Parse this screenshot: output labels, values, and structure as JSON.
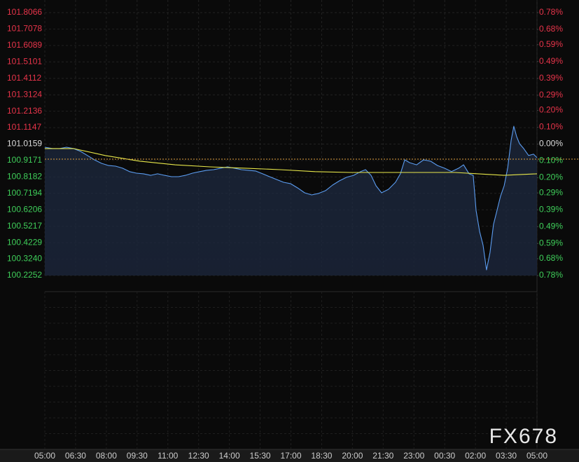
{
  "chart_data": {
    "type": "line",
    "watermark": "FX678",
    "xlim": [
      0,
      24
    ],
    "xticks": [
      {
        "value": 0,
        "label": "05:00"
      },
      {
        "value": 1.5,
        "label": "06:30"
      },
      {
        "value": 3,
        "label": "08:00"
      },
      {
        "value": 4.5,
        "label": "09:30"
      },
      {
        "value": 6,
        "label": "11:00"
      },
      {
        "value": 7.5,
        "label": "12:30"
      },
      {
        "value": 9,
        "label": "14:00"
      },
      {
        "value": 10.5,
        "label": "15:30"
      },
      {
        "value": 12,
        "label": "17:00"
      },
      {
        "value": 13.5,
        "label": "18:30"
      },
      {
        "value": 15,
        "label": "20:00"
      },
      {
        "value": 16.5,
        "label": "21:30"
      },
      {
        "value": 18,
        "label": "23:00"
      },
      {
        "value": 19.5,
        "label": "00:30"
      },
      {
        "value": 21,
        "label": "02:00"
      },
      {
        "value": 22.5,
        "label": "03:30"
      },
      {
        "value": 24,
        "label": "05:00"
      }
    ],
    "ylim": [
      100.2252,
      101.8066
    ],
    "yticks": [
      101.8066,
      101.7078,
      101.6089,
      101.5101,
      101.4112,
      101.3124,
      101.2136,
      101.1147,
      101.0159,
      100.9171,
      100.8182,
      100.7194,
      100.6206,
      100.5217,
      100.4229,
      {
        "value": 100.324,
        "label": "100.3240"
      },
      100.2252
    ],
    "y2lim": [
      -0.78,
      0.78
    ],
    "y2ticks": [
      {
        "value": 0.78,
        "label": "0.78%"
      },
      {
        "value": 0.68,
        "label": "0.68%"
      },
      {
        "value": 0.59,
        "label": "0.59%"
      },
      {
        "value": 0.49,
        "label": "0.49%"
      },
      {
        "value": 0.39,
        "label": "0.39%"
      },
      {
        "value": 0.29,
        "label": "0.29%"
      },
      {
        "value": 0.2,
        "label": "0.20%"
      },
      {
        "value": 0.1,
        "label": "0.10%"
      },
      {
        "value": 0,
        "label": "0.00%"
      },
      {
        "value": -0.1,
        "label": "0.10%"
      },
      {
        "value": -0.2,
        "label": "0.20%"
      },
      {
        "value": -0.29,
        "label": "0.29%"
      },
      {
        "value": -0.39,
        "label": "0.39%"
      },
      {
        "value": -0.49,
        "label": "0.49%"
      },
      {
        "value": -0.59,
        "label": "0.59%"
      },
      {
        "value": -0.68,
        "label": "0.68%"
      },
      {
        "value": -0.78,
        "label": "0.78%"
      }
    ],
    "up_color": "#e8344a",
    "down_color": "#3fcf5a",
    "flat_color": "#dddddd",
    "grid": true,
    "reference_line": {
      "value": 100.925,
      "color": "#e0a040"
    },
    "series": [
      {
        "color": "#5b9cf0",
        "fill": true,
        "x": [
          0,
          0.38,
          0.72,
          1.06,
          1.4,
          1.74,
          2.08,
          2.42,
          2.77,
          3.11,
          3.45,
          3.79,
          4.13,
          4.47,
          4.81,
          5.16,
          5.5,
          5.84,
          6.18,
          6.52,
          6.86,
          7.2,
          7.55,
          7.89,
          8.23,
          8.57,
          8.91,
          9.25,
          9.59,
          9.93,
          10.28,
          10.62,
          10.96,
          11.3,
          11.64,
          11.98,
          12.33,
          12.67,
          13.01,
          13.35,
          13.69,
          14.03,
          14.37,
          14.71,
          15.06,
          15.4,
          15.64,
          15.91,
          16.15,
          16.42,
          16.76,
          17.1,
          17.34,
          17.55,
          17.79,
          18.13,
          18.47,
          18.81,
          19.15,
          19.49,
          19.83,
          20.18,
          20.42,
          20.69,
          20.89,
          21.03,
          21.2,
          21.37,
          21.54,
          21.71,
          21.88,
          22.05,
          22.22,
          22.4,
          22.57,
          22.74,
          22.87,
          23.01,
          23.15,
          23.35,
          23.59,
          23.83,
          24.0
        ],
        "values": [
          100.997,
          100.989,
          100.989,
          100.997,
          100.989,
          100.972,
          100.947,
          100.921,
          100.9,
          100.887,
          100.883,
          100.871,
          100.85,
          100.841,
          100.837,
          100.828,
          100.837,
          100.828,
          100.82,
          100.82,
          100.828,
          100.841,
          100.85,
          100.858,
          100.862,
          100.871,
          100.879,
          100.871,
          100.862,
          100.858,
          100.854,
          100.837,
          100.82,
          100.803,
          100.786,
          100.778,
          100.752,
          100.723,
          100.71,
          100.719,
          100.736,
          100.769,
          100.795,
          100.816,
          100.828,
          100.85,
          100.862,
          100.828,
          100.765,
          100.723,
          100.744,
          100.786,
          100.837,
          100.921,
          100.904,
          100.891,
          100.921,
          100.913,
          100.887,
          100.871,
          100.85,
          100.871,
          100.891,
          100.837,
          100.828,
          100.617,
          100.491,
          100.407,
          100.259,
          100.364,
          100.533,
          100.617,
          100.702,
          100.765,
          100.871,
          101.039,
          101.123,
          101.06,
          101.018,
          100.989,
          100.947,
          100.955,
          100.934
        ]
      },
      {
        "color": "#e8e84a",
        "fill": false,
        "x": [
          0,
          1.4,
          2.94,
          4.64,
          6.35,
          8.05,
          9.76,
          11.47,
          13.17,
          14.88,
          16.59,
          18.3,
          20.01,
          21.71,
          22.39,
          24
        ],
        "values": [
          100.989,
          100.989,
          100.947,
          100.913,
          100.891,
          100.879,
          100.871,
          100.862,
          100.85,
          100.845,
          100.845,
          100.845,
          100.845,
          100.833,
          100.828,
          100.837
        ]
      }
    ]
  }
}
